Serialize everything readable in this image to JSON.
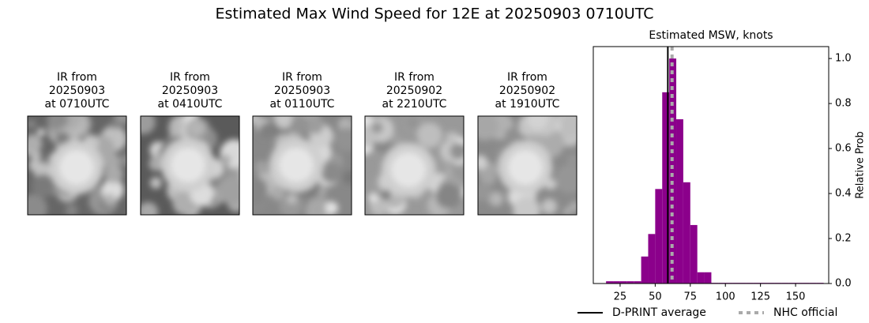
{
  "title": "Estimated Max Wind Speed for 12E at 20250903 0710UTC",
  "panels": [
    {
      "label": [
        "IR from",
        "20250903",
        "at 0710UTC"
      ]
    },
    {
      "label": [
        "IR from",
        "20250903",
        "at 0410UTC"
      ]
    },
    {
      "label": [
        "IR from",
        "20250903",
        "at 0110UTC"
      ]
    },
    {
      "label": [
        "IR from",
        "20250902",
        "at 2210UTC"
      ]
    },
    {
      "label": [
        "IR from",
        "20250902",
        "at 1910UTC"
      ]
    }
  ],
  "chart_data": {
    "type": "histogram",
    "title": "Estimated MSW, knots",
    "y_label": "Relative Prob",
    "color": "#8b008b",
    "bins": [
      15,
      20,
      25,
      30,
      35,
      40,
      45,
      50,
      55,
      60,
      65,
      70,
      75,
      80,
      85,
      90,
      95,
      100,
      105,
      110,
      115,
      120,
      125,
      130,
      135,
      140,
      145,
      150,
      155,
      160,
      165,
      170
    ],
    "values": [
      0.01,
      0.01,
      0.01,
      0.01,
      0.01,
      0.12,
      0.22,
      0.42,
      0.85,
      1.0,
      0.73,
      0.45,
      0.26,
      0.05,
      0.05,
      0.003,
      0.003,
      0.003,
      0.003,
      0.003,
      0.003,
      0.003,
      0.003,
      0.003,
      0.003,
      0.003,
      0.003,
      0.003,
      0.003,
      0.003,
      0.003
    ],
    "lines": [
      {
        "name": "D-PRINT average",
        "color": "#000000",
        "style": "solid",
        "value": 59
      },
      {
        "name": "NHC official",
        "color": "#aaaaaa",
        "style": "dotted",
        "value": 62
      }
    ],
    "xlim": [
      5.9,
      173.6
    ],
    "xticks": [
      25,
      50,
      75,
      100,
      125,
      150
    ],
    "ylim": [
      0,
      1.053
    ],
    "yticks": [
      {
        "value": 0,
        "label": "0.0"
      },
      0.2,
      0.4,
      0.6,
      0.8,
      {
        "value": 1,
        "label": "1.0"
      }
    ],
    "y_axis_side": "right",
    "legend": "bottom"
  }
}
